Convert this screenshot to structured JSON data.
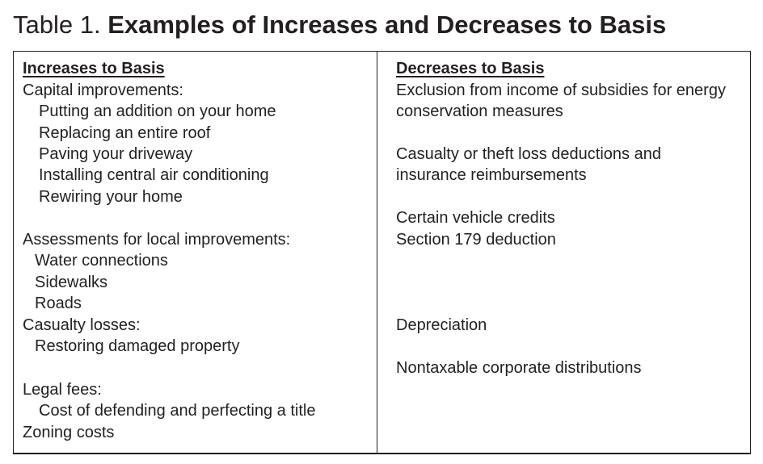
{
  "title": {
    "prefix": "Table 1.",
    "main": "Examples of Increases and Decreases to Basis"
  },
  "increases": {
    "header": "Increases to Basis",
    "capital_improvements": "Capital improvements:",
    "addition": "Putting an addition on your home",
    "roof": "Replacing an entire roof",
    "driveway": "Paving your driveway",
    "air": "Installing central air conditioning",
    "rewiring": "Rewiring your home",
    "assessments": "Assessments for local improvements:",
    "water": "Water connections",
    "sidewalks": "Sidewalks",
    "roads": "Roads",
    "casualty_losses": "Casualty losses:",
    "restoring": "Restoring damaged property",
    "legal_fees": "Legal fees:",
    "title_cost": "Cost of defending and perfecting a title",
    "zoning": "Zoning costs"
  },
  "decreases": {
    "header": "Decreases to Basis",
    "exclusion_line1": "Exclusion from income of subsidies for energy",
    "exclusion_line2": "conservation measures",
    "casualty_line1": "Casualty or theft loss deductions and",
    "casualty_line2": "insurance reimbursements",
    "vehicle": "Certain vehicle credits",
    "section179": "Section 179 deduction",
    "depreciation": "Depreciation",
    "nontaxable": "Nontaxable corporate distributions"
  }
}
